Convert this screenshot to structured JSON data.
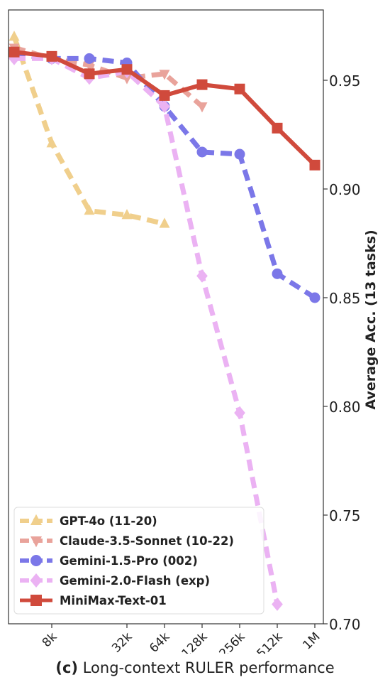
{
  "caption": {
    "tag": "(c)",
    "text": "Long-context RULER performance"
  },
  "chart_data": {
    "type": "line",
    "x": [
      "4k",
      "8k",
      "16k",
      "32k",
      "64k",
      "128k",
      "256k",
      "512k",
      "1M"
    ],
    "x_tick_labels": [
      "8k",
      "32k",
      "64k",
      "128k",
      "256k",
      "512k",
      "1M"
    ],
    "ylabel": "Average Acc. (13 tasks)",
    "ylim": [
      0.7,
      0.98
    ],
    "yticks": [
      "0.70",
      "0.75",
      "0.80",
      "0.85",
      "0.90",
      "0.95"
    ],
    "y_axis_side": "right",
    "grid": false,
    "legend_position": "lower-left",
    "series": [
      {
        "name": "GPT-4o (11-20)",
        "color": "#f0cf8c",
        "marker": "triangle-up",
        "dashed": true,
        "points": [
          [
            "4k",
            0.97
          ],
          [
            "8k",
            0.921
          ],
          [
            "16k",
            0.89
          ],
          [
            "32k",
            0.888
          ],
          [
            "64k",
            0.884
          ]
        ]
      },
      {
        "name": "Claude-3.5-Sonnet (10-22)",
        "color": "#e9a39b",
        "marker": "triangle-down",
        "dashed": true,
        "points": [
          [
            "4k",
            0.965
          ],
          [
            "8k",
            0.96
          ],
          [
            "16k",
            0.957
          ],
          [
            "32k",
            0.951
          ],
          [
            "64k",
            0.953
          ],
          [
            "128k",
            0.938
          ]
        ]
      },
      {
        "name": "Gemini-1.5-Pro (002)",
        "color": "#7b77e8",
        "marker": "circle",
        "dashed": true,
        "points": [
          [
            "4k",
            0.962
          ],
          [
            "8k",
            0.96
          ],
          [
            "16k",
            0.96
          ],
          [
            "32k",
            0.958
          ],
          [
            "64k",
            0.938
          ],
          [
            "128k",
            0.917
          ],
          [
            "256k",
            0.916
          ],
          [
            "512k",
            0.861
          ],
          [
            "1M",
            0.85
          ]
        ]
      },
      {
        "name": "Gemini-2.0-Flash (exp)",
        "color": "#ebb2f3",
        "marker": "diamond",
        "dashed": true,
        "points": [
          [
            "4k",
            0.96
          ],
          [
            "8k",
            0.96
          ],
          [
            "16k",
            0.951
          ],
          [
            "32k",
            0.954
          ],
          [
            "64k",
            0.938
          ],
          [
            "128k",
            0.86
          ],
          [
            "256k",
            0.797
          ],
          [
            "512k",
            0.709
          ]
        ]
      },
      {
        "name": "MiniMax-Text-01",
        "color": "#d04a3c",
        "marker": "square",
        "dashed": false,
        "points": [
          [
            "4k",
            0.963
          ],
          [
            "8k",
            0.961
          ],
          [
            "16k",
            0.953
          ],
          [
            "32k",
            0.955
          ],
          [
            "64k",
            0.943
          ],
          [
            "128k",
            0.948
          ],
          [
            "256k",
            0.946
          ],
          [
            "512k",
            0.928
          ],
          [
            "1M",
            0.911
          ]
        ]
      }
    ]
  }
}
